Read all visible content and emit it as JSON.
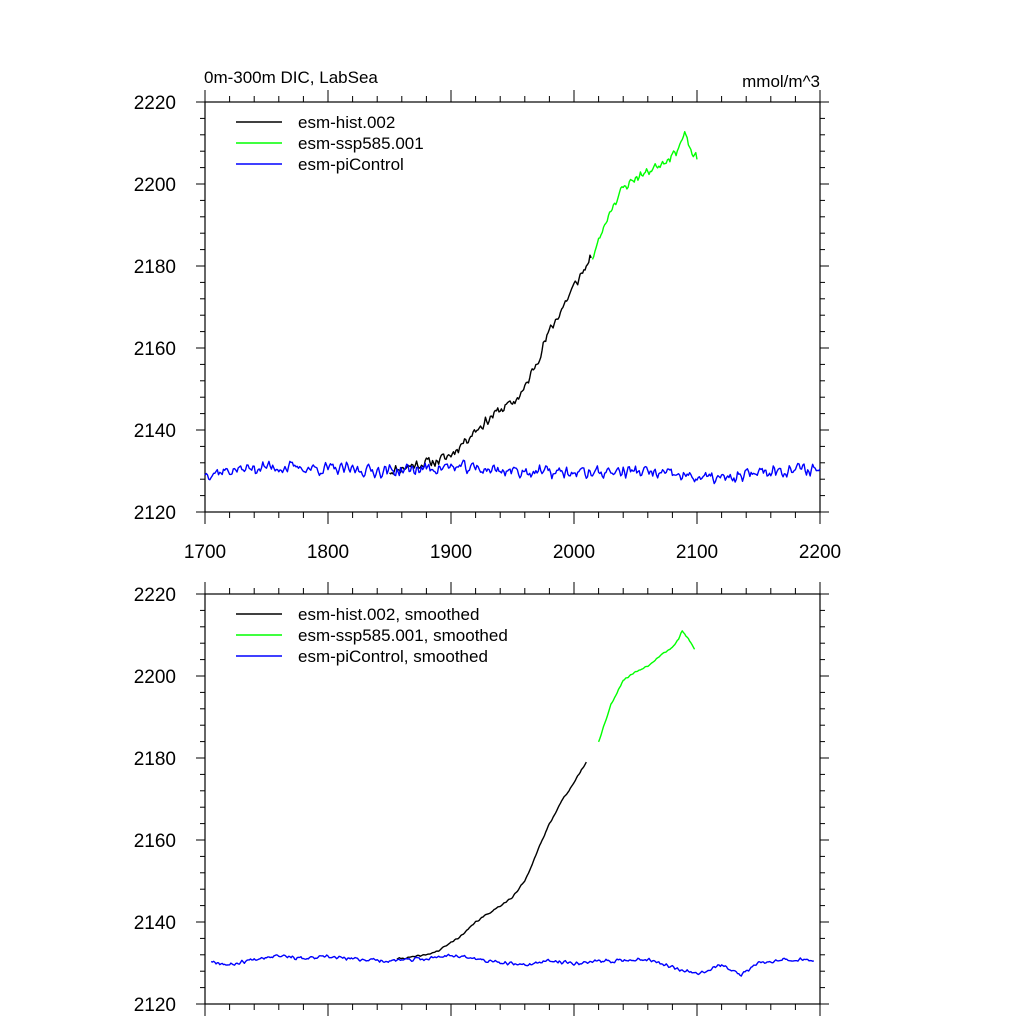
{
  "page": {
    "title_left": "0m-300m DIC, LabSea",
    "title_right": "mmol/m^3"
  },
  "chart_data": [
    {
      "type": "line",
      "xlim": [
        1700,
        2200
      ],
      "ylim": [
        2120,
        2220
      ],
      "x_ticks": [
        "1700",
        "1800",
        "1900",
        "2000",
        "2100",
        "2200"
      ],
      "y_ticks": [
        "2120",
        "2140",
        "2160",
        "2180",
        "2200",
        "2220"
      ],
      "grid": false,
      "legend_position": "top-left",
      "series": [
        {
          "name": "esm-hist.002",
          "color": "#000000",
          "noise": 1.6,
          "seed": 11,
          "x": [
            1850,
            1870,
            1890,
            1900,
            1910,
            1920,
            1930,
            1940,
            1950,
            1960,
            1970,
            1980,
            1990,
            2000,
            2010,
            2014
          ],
          "y": [
            2130,
            2131.5,
            2132.5,
            2134,
            2137,
            2140,
            2142.5,
            2145,
            2146.5,
            2150,
            2157,
            2164,
            2169.5,
            2175,
            2180,
            2182
          ]
        },
        {
          "name": "esm-ssp585.001",
          "color": "#00ff00",
          "noise": 1.4,
          "seed": 23,
          "x": [
            2015,
            2020,
            2030,
            2040,
            2050,
            2060,
            2070,
            2080,
            2085,
            2090,
            2095,
            2100
          ],
          "y": [
            2182,
            2186,
            2194,
            2199,
            2201.5,
            2203,
            2205,
            2207,
            2209,
            2212,
            2208,
            2206
          ]
        },
        {
          "name": "esm-piControl",
          "color": "#0000ff",
          "noise": 1.9,
          "seed": 37,
          "x": [
            1700,
            1750,
            1800,
            1850,
            1900,
            1950,
            2000,
            2050,
            2080,
            2100,
            2130,
            2150,
            2200
          ],
          "y": [
            2129.5,
            2131,
            2130.5,
            2130,
            2131,
            2130,
            2129.5,
            2130,
            2129,
            2128.5,
            2128,
            2130,
            2130.5
          ]
        }
      ]
    },
    {
      "type": "line",
      "xlim": [
        1700,
        2200
      ],
      "ylim": [
        2120,
        2220
      ],
      "x_ticks": [],
      "y_ticks": [
        "2120",
        "2140",
        "2160",
        "2180",
        "2200",
        "2220"
      ],
      "grid": false,
      "legend_position": "top-left",
      "series": [
        {
          "name": "esm-hist.002, smoothed",
          "color": "#000000",
          "noise": 0.25,
          "seed": 41,
          "x": [
            1856,
            1870,
            1880,
            1890,
            1900,
            1910,
            1920,
            1930,
            1940,
            1950,
            1960,
            1970,
            1980,
            1990,
            2000,
            2010
          ],
          "y": [
            2131,
            2131.5,
            2132,
            2133,
            2135,
            2137,
            2140,
            2142,
            2144,
            2146,
            2150,
            2157,
            2164,
            2169.5,
            2174,
            2179
          ]
        },
        {
          "name": "esm-ssp585.001, smoothed",
          "color": "#00ff00",
          "noise": 0.25,
          "seed": 53,
          "x": [
            2020,
            2030,
            2040,
            2050,
            2060,
            2070,
            2080,
            2085,
            2088,
            2093,
            2098
          ],
          "y": [
            2184,
            2193,
            2199,
            2201,
            2202.5,
            2205,
            2207,
            2209,
            2211,
            2209,
            2206.5
          ]
        },
        {
          "name": "esm-piControl, smoothed",
          "color": "#0000ff",
          "noise": 0.55,
          "seed": 67,
          "x": [
            1705,
            1720,
            1740,
            1760,
            1780,
            1800,
            1820,
            1850,
            1880,
            1900,
            1920,
            1940,
            1960,
            1980,
            2000,
            2030,
            2060,
            2080,
            2100,
            2120,
            2135,
            2150,
            2170,
            2195
          ],
          "y": [
            2130.5,
            2129.5,
            2131,
            2132,
            2131,
            2131.5,
            2131,
            2130.5,
            2131,
            2132,
            2131,
            2130,
            2129.5,
            2130.5,
            2130,
            2130.5,
            2131,
            2129,
            2127.5,
            2129.5,
            2127,
            2130,
            2131,
            2130.5
          ]
        }
      ]
    }
  ]
}
